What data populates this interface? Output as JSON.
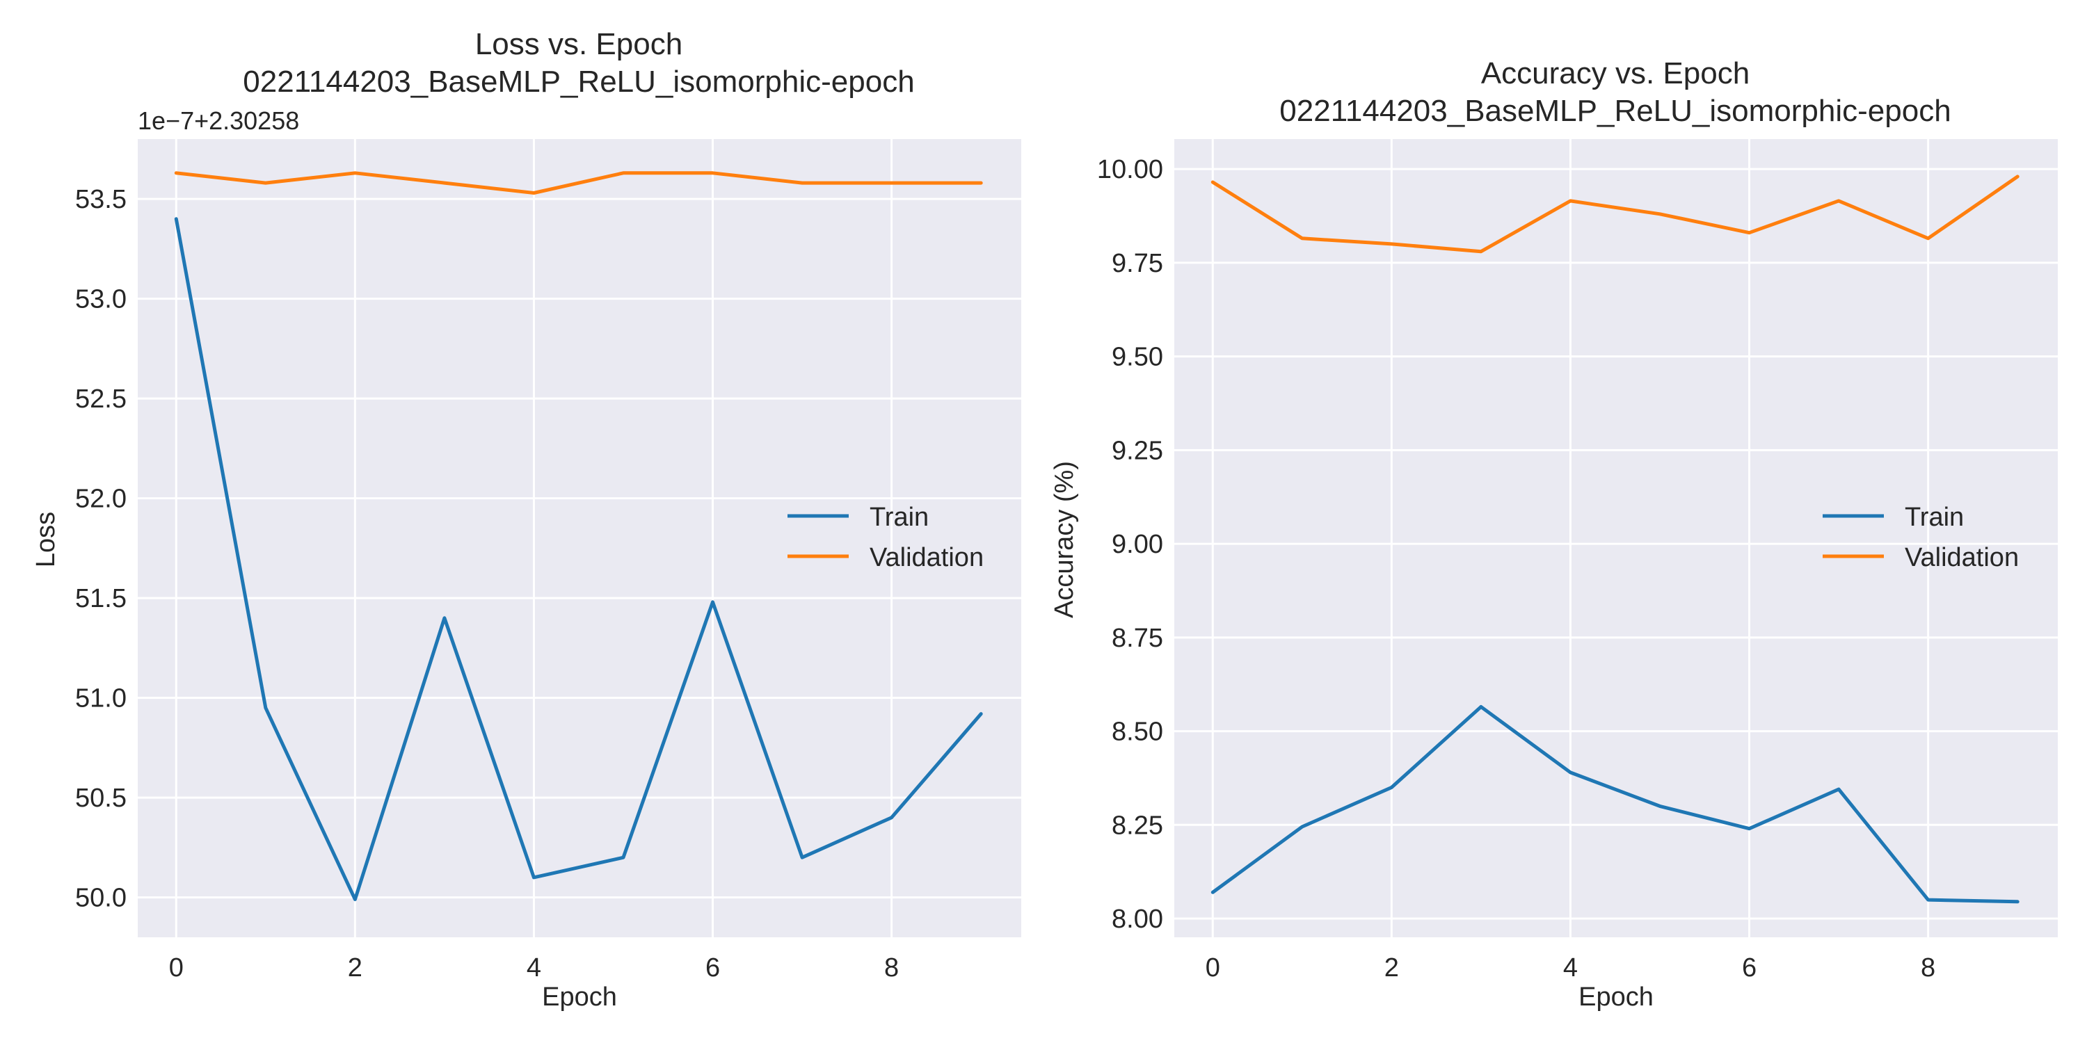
{
  "chart_data": [
    {
      "type": "line",
      "title_line1": "Loss vs. Epoch",
      "title_line2": "0221144203_BaseMLP_ReLU_isomorphic-epoch",
      "xlabel": "Epoch",
      "ylabel": "Loss",
      "offset_text": "1e−7+2.30258",
      "x": [
        0,
        1,
        2,
        3,
        4,
        5,
        6,
        7,
        8,
        9
      ],
      "xlim": [
        -0.43,
        9.45
      ],
      "ylim": [
        49.8,
        53.8
      ],
      "xticks": [
        0,
        2,
        4,
        6,
        8
      ],
      "yticks": [
        50.0,
        50.5,
        51.0,
        51.5,
        52.0,
        52.5,
        53.0,
        53.5
      ],
      "ytick_decimals": 1,
      "grid": true,
      "legend_position": "center-right",
      "series": [
        {
          "name": "Train",
          "color": "#1f77b4",
          "values": [
            53.4,
            50.95,
            49.99,
            51.4,
            50.1,
            50.2,
            51.48,
            50.2,
            50.4,
            50.92
          ]
        },
        {
          "name": "Validation",
          "color": "#ff7f0e",
          "values": [
            53.63,
            53.58,
            53.63,
            53.58,
            53.53,
            53.63,
            53.63,
            53.58,
            53.58,
            53.58
          ]
        }
      ]
    },
    {
      "type": "line",
      "title_line1": "Accuracy vs. Epoch",
      "title_line2": "0221144203_BaseMLP_ReLU_isomorphic-epoch",
      "xlabel": "Epoch",
      "ylabel": "Accuracy (%)",
      "offset_text": "",
      "x": [
        0,
        1,
        2,
        3,
        4,
        5,
        6,
        7,
        8,
        9
      ],
      "xlim": [
        -0.43,
        9.45
      ],
      "ylim": [
        7.95,
        10.08
      ],
      "xticks": [
        0,
        2,
        4,
        6,
        8
      ],
      "yticks": [
        8.0,
        8.25,
        8.5,
        8.75,
        9.0,
        9.25,
        9.5,
        9.75,
        10.0
      ],
      "ytick_decimals": 2,
      "grid": true,
      "legend_position": "center-right",
      "series": [
        {
          "name": "Train",
          "color": "#1f77b4",
          "values": [
            8.07,
            8.245,
            8.35,
            8.565,
            8.39,
            8.3,
            8.24,
            8.345,
            8.05,
            8.045
          ]
        },
        {
          "name": "Validation",
          "color": "#ff7f0e",
          "values": [
            9.965,
            9.815,
            9.8,
            9.78,
            9.915,
            9.88,
            9.83,
            9.915,
            9.815,
            9.98
          ]
        }
      ]
    }
  ]
}
